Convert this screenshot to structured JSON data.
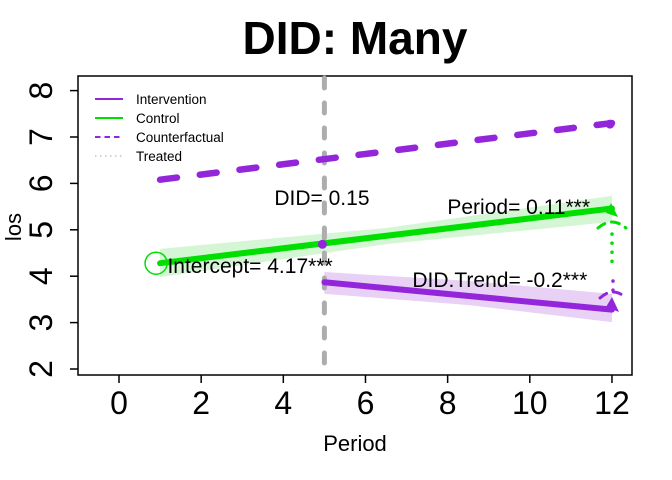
{
  "title": "DID: Many",
  "axes": {
    "xlabel": "Period",
    "ylabel": "los",
    "x_ticks": [
      0,
      2,
      4,
      6,
      8,
      10,
      12
    ],
    "y_ticks": [
      2,
      3,
      4,
      5,
      6,
      7,
      8
    ]
  },
  "legend": {
    "items": [
      {
        "label": "Intervention",
        "color": "#9326DB",
        "style": "solid"
      },
      {
        "label": "Control",
        "color": "#00DF00",
        "style": "solid"
      },
      {
        "label": "Counterfactual",
        "color": "#9326DB",
        "style": "dashed"
      },
      {
        "label": "Treated",
        "color": "#C4C4C4",
        "style": "dotted"
      }
    ]
  },
  "chart_data": {
    "type": "line",
    "title": "DID: Many",
    "xlabel": "Period",
    "ylabel": "los",
    "xlim": [
      -1,
      13.5
    ],
    "ylim": [
      2,
      8
    ],
    "x_ticks": [
      0,
      2,
      4,
      6,
      8,
      10,
      12
    ],
    "y_ticks": [
      2,
      3,
      4,
      5,
      6,
      7,
      8
    ],
    "grid": false,
    "legend_position": "top-left",
    "intervention_start_x": 5,
    "series": [
      {
        "name": "Counterfactual",
        "color": "#9326DB",
        "style": "dashed",
        "x": [
          1,
          12
        ],
        "y": [
          6.08,
          7.3
        ]
      },
      {
        "name": "Control",
        "color": "#00DF00",
        "style": "solid",
        "x": [
          1,
          12
        ],
        "y": [
          4.28,
          5.46
        ],
        "band_color": "#CDF5CD",
        "band_upper": [
          [
            1,
            4.59
          ],
          [
            6.5,
            5.04
          ],
          [
            12,
            5.73
          ]
        ],
        "band_lower": [
          [
            1,
            3.98
          ],
          [
            6.5,
            4.69
          ],
          [
            12,
            5.17
          ]
        ],
        "marker": {
          "type": "open-circle",
          "x": 1,
          "y": 4.28
        }
      },
      {
        "name": "Intervention",
        "color": "#9326DB",
        "style": "solid",
        "x": [
          5,
          12
        ],
        "y": [
          3.87,
          3.28
        ],
        "band_color": "#E4C9F3",
        "band_upper": [
          [
            5,
            4.09
          ],
          [
            8.49,
            3.9
          ],
          [
            12,
            3.62
          ]
        ],
        "band_lower": [
          [
            5,
            3.62
          ],
          [
            8.49,
            3.38
          ],
          [
            12,
            3.01
          ]
        ]
      },
      {
        "name": "Treated",
        "color": "#ADADAD",
        "style": "dotted-vertical",
        "x": 5
      }
    ],
    "points": [
      {
        "x": 5,
        "y": 4.71,
        "color": "#9326DB"
      },
      {
        "x": 12,
        "y": 7.3,
        "color": "#9326DB"
      }
    ],
    "annotations": [
      {
        "text": "DID= 0.15",
        "x": 4.94,
        "y": 5.71
      },
      {
        "text": "Period= 0.11***",
        "x": 9.73,
        "y": 5.51
      },
      {
        "text": "Intercept= 4.17***",
        "x": 3.19,
        "y": 4.24
      },
      {
        "text": "DID.Trend= -0.2***",
        "x": 9.27,
        "y": 3.94
      }
    ],
    "estimates": {
      "DID": 0.15,
      "Period": 0.11,
      "Intercept": 4.17,
      "DID_Trend": -0.2
    }
  }
}
